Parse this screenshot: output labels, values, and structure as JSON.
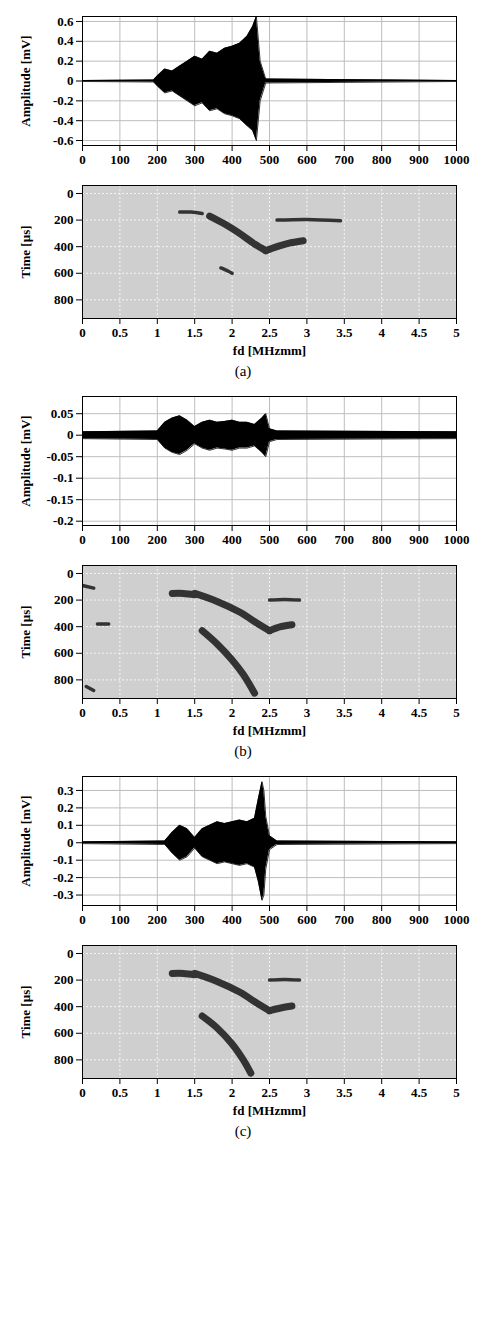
{
  "chart_data": [
    {
      "type": "area",
      "ylabel": "Amplitude [mV]",
      "color": "#000000",
      "grid": true,
      "xlim": [
        0,
        1000
      ],
      "xticks": [
        0,
        100,
        200,
        300,
        400,
        500,
        600,
        700,
        800,
        900,
        1000
      ],
      "ylim": [
        -0.65,
        0.65
      ],
      "yticks": [
        -0.6,
        -0.4,
        -0.2,
        0,
        0.2,
        0.4,
        0.6
      ],
      "x": [
        0,
        190,
        200,
        220,
        240,
        260,
        280,
        300,
        320,
        340,
        360,
        380,
        400,
        420,
        440,
        455,
        465,
        475,
        490,
        1000
      ],
      "upper": [
        0.005,
        0.01,
        0.05,
        0.12,
        0.1,
        0.15,
        0.2,
        0.25,
        0.22,
        0.3,
        0.28,
        0.33,
        0.35,
        0.38,
        0.45,
        0.55,
        0.65,
        0.2,
        0.02,
        0.005
      ],
      "lower": [
        -0.005,
        -0.01,
        -0.05,
        -0.12,
        -0.1,
        -0.15,
        -0.2,
        -0.25,
        -0.22,
        -0.3,
        -0.28,
        -0.33,
        -0.35,
        -0.38,
        -0.45,
        -0.5,
        -0.6,
        -0.2,
        -0.02,
        -0.005
      ]
    },
    {
      "type": "line",
      "xlabel": "fd [MHzmm]",
      "ylabel": "Time [µs]",
      "color": "#333333",
      "grid": true,
      "caption": "(a)",
      "xlim": [
        0,
        5
      ],
      "xticks": [
        0,
        0.5,
        1,
        1.5,
        2,
        2.5,
        3,
        3.5,
        4,
        4.5,
        5
      ],
      "ylim": [
        940,
        -60
      ],
      "yticks": [
        0,
        200,
        400,
        600,
        800
      ],
      "series": [
        {
          "x": [
            1.3,
            1.45,
            1.6
          ],
          "values": [
            140,
            140,
            150
          ],
          "line_style": "thin"
        },
        {
          "x": [
            1.7,
            1.9,
            2.1,
            2.3,
            2.45
          ],
          "values": [
            170,
            230,
            300,
            380,
            430
          ],
          "line_style": "thick"
        },
        {
          "x": [
            2.45,
            2.6,
            2.75,
            2.95
          ],
          "values": [
            430,
            400,
            375,
            355
          ],
          "line_style": "thick"
        },
        {
          "x": [
            2.6,
            3.0,
            3.45
          ],
          "values": [
            200,
            195,
            205
          ],
          "line_style": "thin"
        },
        {
          "x": [
            1.85,
            1.95,
            2.0
          ],
          "values": [
            560,
            585,
            600
          ],
          "line_style": "thin"
        }
      ]
    },
    {
      "type": "area",
      "ylabel": "Amplitude [mV]",
      "color": "#000000",
      "grid": true,
      "xlim": [
        0,
        1000
      ],
      "xticks": [
        0,
        100,
        200,
        300,
        400,
        500,
        600,
        700,
        800,
        900,
        1000
      ],
      "ylim": [
        -0.21,
        0.09
      ],
      "yticks": [
        -0.2,
        -0.15,
        -0.1,
        -0.05,
        0,
        0.05
      ],
      "x": [
        0,
        200,
        220,
        240,
        260,
        280,
        300,
        320,
        340,
        360,
        380,
        400,
        420,
        440,
        460,
        480,
        490,
        500,
        520,
        1000
      ],
      "upper": [
        0.008,
        0.01,
        0.03,
        0.04,
        0.045,
        0.035,
        0.02,
        0.03,
        0.035,
        0.03,
        0.032,
        0.035,
        0.03,
        0.03,
        0.025,
        0.04,
        0.05,
        0.015,
        0.01,
        0.008
      ],
      "lower": [
        -0.008,
        -0.01,
        -0.03,
        -0.04,
        -0.045,
        -0.035,
        -0.02,
        -0.03,
        -0.035,
        -0.03,
        -0.032,
        -0.035,
        -0.03,
        -0.03,
        -0.025,
        -0.04,
        -0.05,
        -0.015,
        -0.01,
        -0.008
      ]
    },
    {
      "type": "line",
      "xlabel": "fd [MHzmm]",
      "ylabel": "Time [µs]",
      "color": "#333333",
      "grid": true,
      "caption": "(b)",
      "xlim": [
        0,
        5
      ],
      "xticks": [
        0,
        0.5,
        1,
        1.5,
        2,
        2.5,
        3,
        3.5,
        4,
        4.5,
        5
      ],
      "ylim": [
        940,
        -60
      ],
      "yticks": [
        0,
        200,
        400,
        600,
        800
      ],
      "series": [
        {
          "x": [
            1.2,
            1.35,
            1.5
          ],
          "values": [
            150,
            150,
            160
          ],
          "line_style": "thick"
        },
        {
          "x": [
            1.5,
            1.8,
            2.1,
            2.35,
            2.5
          ],
          "values": [
            150,
            210,
            290,
            380,
            430
          ],
          "line_style": "thick"
        },
        {
          "x": [
            2.5,
            2.65,
            2.8
          ],
          "values": [
            430,
            400,
            385
          ],
          "line_style": "thick"
        },
        {
          "x": [
            2.5,
            2.7,
            2.9
          ],
          "values": [
            200,
            195,
            200
          ],
          "line_style": "thin"
        },
        {
          "x": [
            1.6,
            1.8,
            2.0,
            2.15,
            2.3
          ],
          "values": [
            430,
            530,
            650,
            760,
            900
          ],
          "line_style": "thick"
        },
        {
          "x": [
            0.0,
            0.15
          ],
          "values": [
            90,
            110
          ],
          "line_style": "thin"
        },
        {
          "x": [
            0.2,
            0.35
          ],
          "values": [
            380,
            380
          ],
          "line_style": "thin"
        },
        {
          "x": [
            0.05,
            0.15
          ],
          "values": [
            850,
            880
          ],
          "line_style": "thin"
        }
      ]
    },
    {
      "type": "area",
      "ylabel": "Amplitude [mV]",
      "color": "#000000",
      "grid": true,
      "xlim": [
        0,
        1000
      ],
      "xticks": [
        0,
        100,
        200,
        300,
        400,
        500,
        600,
        700,
        800,
        900,
        1000
      ],
      "ylim": [
        -0.36,
        0.38
      ],
      "yticks": [
        -0.3,
        -0.2,
        -0.1,
        0,
        0.1,
        0.2,
        0.3
      ],
      "x": [
        0,
        220,
        240,
        260,
        280,
        300,
        320,
        340,
        360,
        380,
        400,
        420,
        440,
        460,
        470,
        480,
        485,
        490,
        500,
        520,
        1000
      ],
      "upper": [
        0.005,
        0.01,
        0.06,
        0.1,
        0.08,
        0.03,
        0.08,
        0.1,
        0.12,
        0.11,
        0.12,
        0.13,
        0.12,
        0.14,
        0.25,
        0.35,
        0.3,
        0.15,
        0.04,
        0.01,
        0.005
      ],
      "lower": [
        -0.005,
        -0.01,
        -0.06,
        -0.1,
        -0.08,
        -0.03,
        -0.08,
        -0.1,
        -0.12,
        -0.11,
        -0.12,
        -0.13,
        -0.12,
        -0.14,
        -0.22,
        -0.33,
        -0.3,
        -0.15,
        -0.04,
        -0.01,
        -0.005
      ]
    },
    {
      "type": "line",
      "xlabel": "fd [MHzmm]",
      "ylabel": "Time [µs]",
      "color": "#333333",
      "grid": true,
      "caption": "(c)",
      "xlim": [
        0,
        5
      ],
      "xticks": [
        0,
        0.5,
        1,
        1.5,
        2,
        2.5,
        3,
        3.5,
        4,
        4.5,
        5
      ],
      "ylim": [
        940,
        -60
      ],
      "yticks": [
        0,
        200,
        400,
        600,
        800
      ],
      "series": [
        {
          "x": [
            1.2,
            1.35,
            1.5
          ],
          "values": [
            150,
            150,
            160
          ],
          "line_style": "thick"
        },
        {
          "x": [
            1.5,
            1.8,
            2.1,
            2.35,
            2.5
          ],
          "values": [
            150,
            210,
            290,
            380,
            430
          ],
          "line_style": "thick"
        },
        {
          "x": [
            2.5,
            2.65,
            2.8
          ],
          "values": [
            430,
            410,
            395
          ],
          "line_style": "thick"
        },
        {
          "x": [
            2.5,
            2.7,
            2.9
          ],
          "values": [
            200,
            195,
            200
          ],
          "line_style": "thin"
        },
        {
          "x": [
            1.6,
            1.8,
            2.0,
            2.15,
            2.25
          ],
          "values": [
            470,
            560,
            680,
            800,
            900
          ],
          "line_style": "thick"
        }
      ]
    }
  ]
}
